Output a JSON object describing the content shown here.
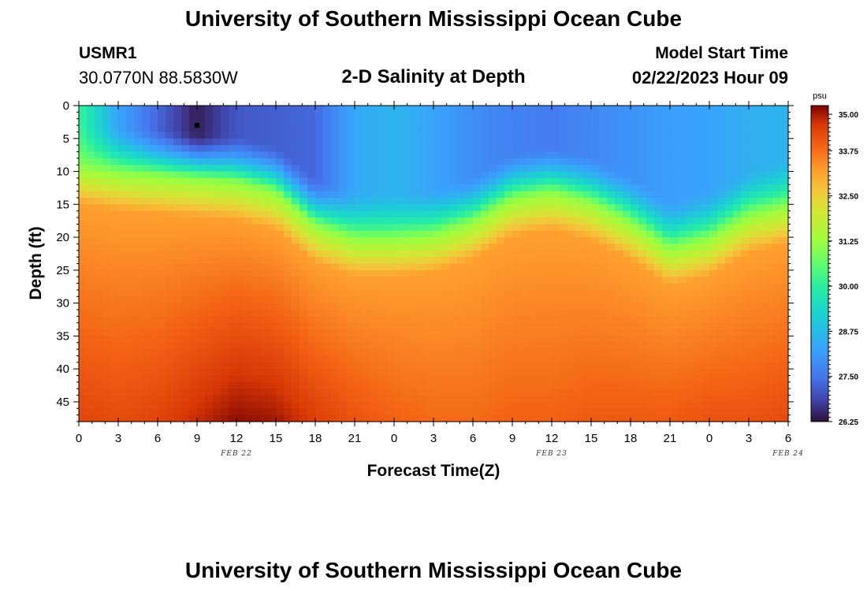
{
  "header": {
    "main_title": "University of Southern Mississippi Ocean Cube",
    "station_id": "USMR1",
    "coordinates": "30.0770N  88.5830W",
    "chart_title": "2-D Salinity at Depth",
    "model_label": "Model Start Time",
    "model_time": "02/22/2023 Hour 09"
  },
  "footer": {
    "title": "University of Southern Mississippi Ocean Cube"
  },
  "chart_data": {
    "type": "heatmap",
    "title": "2-D Salinity at Depth",
    "xlabel": "Forecast Time(Z)",
    "ylabel": "Depth (ft)",
    "x_tick_labels": [
      "0",
      "3",
      "6",
      "9",
      "12",
      "15",
      "18",
      "21",
      "0",
      "3",
      "6",
      "9",
      "12",
      "15",
      "18",
      "21",
      "0",
      "3",
      "6"
    ],
    "x_date_labels": [
      {
        "label": "FEB 22",
        "at_hour": 12
      },
      {
        "label": "FEB 23",
        "at_hour": 36
      },
      {
        "label": "FEB 24",
        "at_hour": 54
      }
    ],
    "xlim_hours": [
      0,
      54
    ],
    "y_ticks": [
      0,
      5,
      10,
      15,
      20,
      25,
      30,
      35,
      40,
      45
    ],
    "ylim": [
      48,
      0
    ],
    "colorbar": {
      "unit": "psu",
      "range": [
        26.25,
        35.0
      ],
      "ticks": [
        "35.00",
        "33.75",
        "32.50",
        "31.25",
        "30.00",
        "28.75",
        "27.50",
        "26.25"
      ]
    },
    "marker": {
      "hour": 9,
      "depth": 3
    },
    "halocline_depth_ft": [
      [
        0,
        9
      ],
      [
        3,
        10
      ],
      [
        6,
        10.5
      ],
      [
        9,
        11
      ],
      [
        12,
        11.5
      ],
      [
        15,
        13
      ],
      [
        18,
        18
      ],
      [
        21,
        20
      ],
      [
        24,
        20
      ],
      [
        27,
        19.5
      ],
      [
        30,
        17.5
      ],
      [
        33,
        14
      ],
      [
        36,
        13
      ],
      [
        39,
        14.5
      ],
      [
        42,
        17.5
      ],
      [
        45,
        21.5
      ],
      [
        48,
        20
      ],
      [
        51,
        16.5
      ],
      [
        54,
        15
      ]
    ],
    "surface_salinity_psu": [
      [
        0,
        30.2
      ],
      [
        3,
        28.3
      ],
      [
        6,
        27.3
      ],
      [
        9,
        26.4
      ],
      [
        12,
        27.1
      ],
      [
        15,
        27.2
      ],
      [
        18,
        27.3
      ],
      [
        21,
        28.4
      ],
      [
        24,
        28.6
      ],
      [
        27,
        28.3
      ],
      [
        30,
        27.9
      ],
      [
        33,
        27.7
      ],
      [
        36,
        27.6
      ],
      [
        39,
        27.8
      ],
      [
        42,
        28.0
      ],
      [
        45,
        28.2
      ],
      [
        48,
        28.3
      ],
      [
        51,
        28.5
      ],
      [
        54,
        28.6
      ]
    ],
    "bottom_salinity_psu": [
      [
        0,
        34.3
      ],
      [
        3,
        34.2
      ],
      [
        6,
        34.3
      ],
      [
        9,
        34.6
      ],
      [
        12,
        34.9
      ],
      [
        15,
        34.8
      ],
      [
        18,
        34.4
      ],
      [
        21,
        34.1
      ],
      [
        24,
        33.9
      ],
      [
        27,
        33.8
      ],
      [
        30,
        33.8
      ],
      [
        33,
        33.9
      ],
      [
        36,
        33.9
      ],
      [
        39,
        34.0
      ],
      [
        42,
        34.0
      ],
      [
        45,
        34.0
      ],
      [
        48,
        34.1
      ],
      [
        51,
        34.1
      ],
      [
        54,
        34.2
      ]
    ]
  }
}
